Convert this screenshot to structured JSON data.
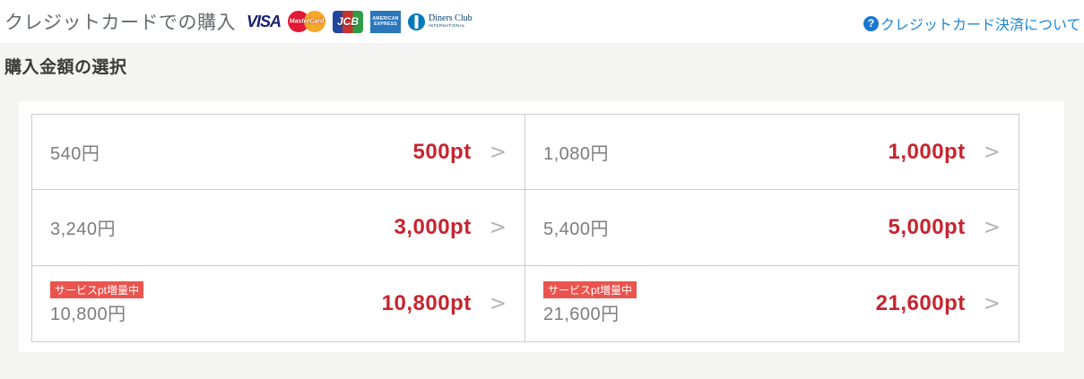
{
  "header": {
    "title": "クレジットカードでの購入",
    "help_link": {
      "icon_glyph": "?",
      "label": "クレジットカード決済について"
    }
  },
  "card_brands": {
    "visa": {
      "label": "VISA"
    },
    "mastercard": {
      "label": "MasterCard"
    },
    "jcb": {
      "label": "JCB"
    },
    "amex": {
      "label": "AMERICAN EXPRESS"
    },
    "diners": {
      "label": "Diners Club",
      "sublabel": "INTERNATIONAL"
    }
  },
  "section": {
    "heading": "購入金額の選択"
  },
  "ui": {
    "chevron": ">"
  },
  "options": [
    {
      "price": "540円",
      "points": "500pt"
    },
    {
      "price": "1,080円",
      "points": "1,000pt"
    },
    {
      "price": "3,240円",
      "points": "3,000pt"
    },
    {
      "price": "5,400円",
      "points": "5,000pt"
    },
    {
      "price": "10,800円",
      "points": "10,800pt",
      "badge": "サービスpt増量中"
    },
    {
      "price": "21,600円",
      "points": "21,600pt",
      "badge": "サービスpt増量中"
    }
  ],
  "colors": {
    "points_red": "#c7242e",
    "badge_red": "#e9544f",
    "link_blue": "#1e87d2",
    "band_gray": "#f4f4f2",
    "table_border": "#cccccc"
  }
}
